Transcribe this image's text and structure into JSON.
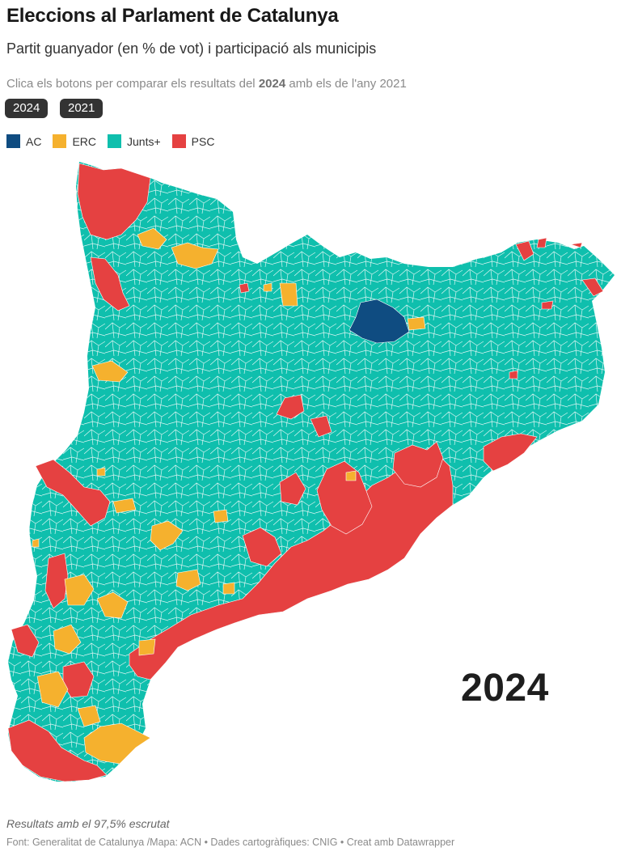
{
  "header": {
    "title": "Eleccions al Parlament de Catalunya",
    "subtitle": "Partit guanyador (en % de vot) i participació als municipis",
    "instruction_prefix": "Clica els botons per comparar els resultats del ",
    "instruction_bold": "2024",
    "instruction_suffix": " amb els de l'any 2021"
  },
  "buttons": [
    {
      "label": "2024",
      "active": true
    },
    {
      "label": "2021",
      "active": false
    }
  ],
  "legend": [
    {
      "label": "AC",
      "color": "#0f4c81"
    },
    {
      "label": "ERC",
      "color": "#f5b12e"
    },
    {
      "label": "Junts+",
      "color": "#0fbfad"
    },
    {
      "label": "PSC",
      "color": "#e54141"
    }
  ],
  "map": {
    "year": "2024",
    "base_color": "#0fbfad",
    "border_color": "#ffffff"
  },
  "footer": {
    "note": "Resultats amb el 97,5% escrutat",
    "sources": "Font: Generalitat de Catalunya /Mapa: ACN • Dades cartogràfiques: CNIG  • Creat amb Datawrapper"
  }
}
